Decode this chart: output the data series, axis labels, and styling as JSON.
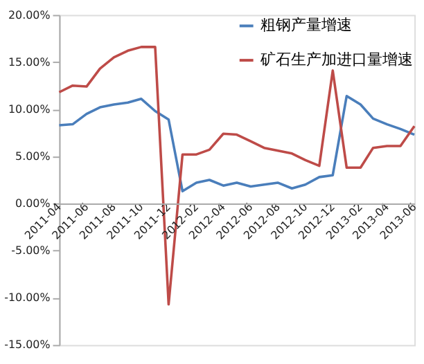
{
  "chart_data": {
    "type": "line",
    "x": [
      "2011-04",
      "2011-05",
      "2011-06",
      "2011-07",
      "2011-08",
      "2011-09",
      "2011-10",
      "2011-11",
      "2011-12",
      "2012-01",
      "2012-02",
      "2012-03",
      "2012-04",
      "2012-05",
      "2012-06",
      "2012-07",
      "2012-08",
      "2012-09",
      "2012-10",
      "2012-11",
      "2012-12",
      "2013-01",
      "2013-02",
      "2013-03",
      "2013-04",
      "2013-05",
      "2013-06"
    ],
    "series": [
      {
        "name": "粗钢产量增速",
        "color": "#4a7ebb",
        "values": [
          8.3,
          8.4,
          9.5,
          10.2,
          10.5,
          10.7,
          11.1,
          9.8,
          8.9,
          1.3,
          2.2,
          2.5,
          1.9,
          2.2,
          1.8,
          2.0,
          2.2,
          1.6,
          2.0,
          2.8,
          3.0,
          11.4,
          10.5,
          9.0,
          8.4,
          7.9,
          7.3
        ]
      },
      {
        "name": "矿石生产加进口量增速",
        "color": "#be4b48",
        "values": [
          11.8,
          12.5,
          12.4,
          14.3,
          15.5,
          16.2,
          16.6,
          16.6,
          -10.7,
          5.2,
          5.2,
          5.7,
          7.4,
          7.3,
          6.6,
          5.9,
          5.6,
          5.3,
          4.6,
          4.0,
          14.1,
          3.8,
          3.8,
          5.9,
          6.1,
          6.1,
          8.2
        ]
      }
    ],
    "xlim": [
      "2011-04",
      "2013-06"
    ],
    "xticks": [
      "2011-04",
      "2011-06",
      "2011-08",
      "2011-10",
      "2011-12",
      "2012-02",
      "2012-04",
      "2012-06",
      "2012-08",
      "2012-10",
      "2012-12",
      "2013-02",
      "2013-04",
      "2013-06"
    ],
    "ylim": [
      -15,
      20
    ],
    "yticks": [
      {
        "value": -15,
        "label": "-15.00%"
      },
      {
        "value": -10,
        "label": "-10.00%"
      },
      {
        "value": -5,
        "label": "-5.00%"
      },
      {
        "value": 0,
        "label": "0.00%"
      },
      {
        "value": 5,
        "label": "5.00%"
      },
      {
        "value": 10,
        "label": "10.00%"
      },
      {
        "value": 15,
        "label": "15.00%"
      },
      {
        "value": 20,
        "label": "20.00%"
      }
    ],
    "legend": "top right",
    "grid": false,
    "marker": "none",
    "line_style": "solid"
  }
}
